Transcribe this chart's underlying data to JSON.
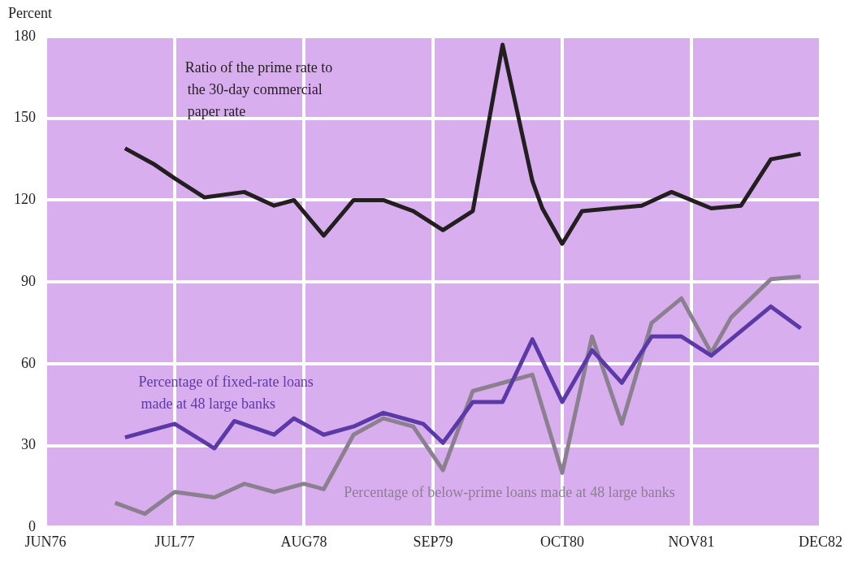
{
  "chart_data": {
    "type": "line",
    "ylabel": "Percent",
    "xlim": [
      "1976-06",
      "1982-12"
    ],
    "xticks": [
      {
        "value": "1976-06",
        "label": "JUN76"
      },
      {
        "value": "1977-07",
        "label": "JUL77"
      },
      {
        "value": "1978-08",
        "label": "AUG78"
      },
      {
        "value": "1979-09",
        "label": "SEP79"
      },
      {
        "value": "1980-10",
        "label": "OCT80"
      },
      {
        "value": "1981-11",
        "label": "NOV81"
      },
      {
        "value": "1982-12",
        "label": "DEC82"
      }
    ],
    "ylim": [
      0,
      180
    ],
    "yticks": [
      0,
      30,
      60,
      90,
      120,
      150,
      180
    ],
    "grid": true,
    "legend": false,
    "marker": "none",
    "line_style": "solid",
    "series": [
      {
        "name": "Ratio of the prime rate to the 30-day commercial paper rate",
        "color": "#231f20",
        "x": [
          "1977-02",
          "1977-05",
          "1977-07",
          "1977-10",
          "1978-02",
          "1978-05",
          "1978-07",
          "1978-10",
          "1979-01",
          "1979-04",
          "1979-07",
          "1979-10",
          "1980-01",
          "1980-04",
          "1980-07",
          "1980-08",
          "1980-10",
          "1980-12",
          "1981-03",
          "1981-06",
          "1981-09",
          "1982-01",
          "1982-04",
          "1982-07",
          "1982-10"
        ],
        "values": [
          139,
          133,
          128,
          121,
          123,
          118,
          120,
          107,
          120,
          120,
          116,
          109,
          116,
          177,
          127,
          117,
          104,
          116,
          117,
          118,
          123,
          117,
          118,
          135,
          137
        ]
      },
      {
        "name": "Percentage of fixed-rate loans made at 48 large banks",
        "color": "#5b3aa8",
        "x": [
          "1977-02",
          "1977-07",
          "1977-11",
          "1978-01",
          "1978-05",
          "1978-07",
          "1978-10",
          "1979-01",
          "1979-04",
          "1979-08",
          "1979-10",
          "1980-01",
          "1980-04",
          "1980-07",
          "1980-10",
          "1981-01",
          "1981-04",
          "1981-07",
          "1981-10",
          "1982-01",
          "1982-07",
          "1982-10"
        ],
        "values": [
          33,
          38,
          29,
          39,
          34,
          40,
          34,
          37,
          42,
          38,
          31,
          46,
          46,
          69,
          46,
          65,
          53,
          70,
          70,
          63,
          81,
          73
        ]
      },
      {
        "name": "Percentage of below-prime loans made at 48 large banks",
        "color": "#8a8090",
        "x": [
          "1977-01",
          "1977-04",
          "1977-07",
          "1977-11",
          "1978-02",
          "1978-05",
          "1978-08",
          "1978-10",
          "1979-01",
          "1979-04",
          "1979-07",
          "1979-10",
          "1980-01",
          "1980-07",
          "1980-10",
          "1981-01",
          "1981-04",
          "1981-07",
          "1981-10",
          "1982-01",
          "1982-03",
          "1982-07",
          "1982-10"
        ],
        "values": [
          9,
          5,
          13,
          11,
          16,
          13,
          16,
          14,
          34,
          40,
          37,
          21,
          50,
          56,
          20,
          70,
          38,
          75,
          84,
          64,
          77,
          91,
          92
        ]
      }
    ]
  }
}
